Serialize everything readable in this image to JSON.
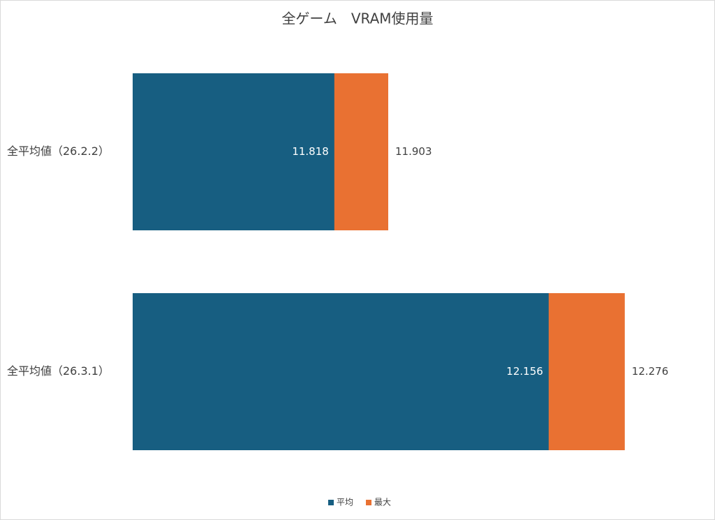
{
  "chart_data": {
    "type": "bar",
    "orientation": "horizontal",
    "overlap": true,
    "title": "全ゲーム　VRAM使用量",
    "categories": [
      "全平均値（26.2.2）",
      "全平均値（26.3.1）"
    ],
    "series": [
      {
        "name": "平均",
        "color": "#175e81",
        "values": [
          11.818,
          12.156
        ]
      },
      {
        "name": "最大",
        "color": "#e97132",
        "values": [
          11.903,
          12.276
        ]
      }
    ],
    "xlim": [
      11.5,
      12.35
    ],
    "legend": "bottom"
  }
}
